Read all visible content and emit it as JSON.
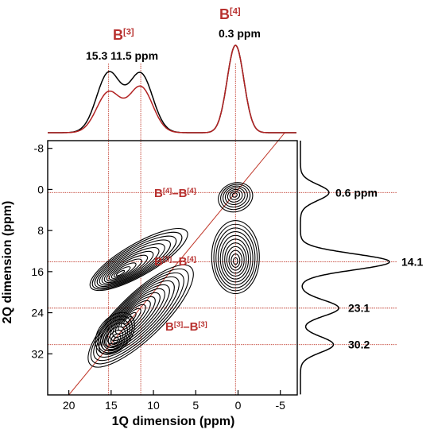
{
  "colors": {
    "spectrum_dark": "#000000",
    "spectrum_red": "#b22222",
    "guide_red": "#c0392b",
    "label_red": "#b8312f"
  },
  "top_labels": {
    "b3": {
      "base": "B",
      "sup": "[3]"
    },
    "b4": {
      "base": "B",
      "sup": "[4]"
    },
    "b3_peaks_text": "15.3   11.5 ppm",
    "b4_peak_text": "0.3 ppm"
  },
  "side_labels": {
    "l1": "0.6 ppm",
    "l2": "14.1",
    "l3": "23.1",
    "l4": "30.2"
  },
  "correlation_labels": [
    {
      "a": "B",
      "a_sup": "[4]",
      "dash": "–",
      "b": "B",
      "b_sup": "[4]"
    },
    {
      "a": "B",
      "a_sup": "[3]",
      "dash": "–",
      "b": "B",
      "b_sup": "[4]"
    },
    {
      "a": "B",
      "a_sup": "[3]",
      "dash": "–",
      "b": "B",
      "b_sup": "[3]"
    }
  ],
  "chart_data": {
    "type": "contour",
    "xlabel": "1Q dimension (ppm)",
    "ylabel": "2Q dimension (ppm)",
    "xlim": [
      22.5,
      -7
    ],
    "ylim": [
      -9.5,
      40
    ],
    "x_ticks": [
      "20",
      "15",
      "10",
      "5",
      "0",
      "-5"
    ],
    "x_tick_values": [
      20,
      15,
      10,
      5,
      0,
      -5
    ],
    "y_ticks": [
      "-8",
      "0",
      "8",
      "16",
      "24",
      "32"
    ],
    "y_tick_values": [
      -8,
      0,
      8,
      16,
      24,
      32
    ],
    "guide_x_ppm": [
      15.3,
      11.5,
      0.3
    ],
    "guide_y_ppm": [
      0.6,
      14.1,
      23.1,
      30.2
    ],
    "diagonal": [
      [
        20,
        40
      ],
      [
        -5.5,
        -11
      ]
    ],
    "contour_peaks": [
      {
        "name": "B4-B4 upper",
        "x": 0.3,
        "y": 0.6
      },
      {
        "name": "B4-B4 lower",
        "x": 0.3,
        "y": 14.1
      },
      {
        "name": "B3-B4",
        "x": 15.3,
        "y": 14.1
      },
      {
        "name": "B3-B3 a",
        "x": 11.5,
        "y": 23.1
      },
      {
        "name": "B3-B3 b",
        "x": 15.3,
        "y": 30.2
      }
    ],
    "top_projection": {
      "series": [
        {
          "color": "black",
          "peaks": [
            {
              "x": 15.3,
              "height": 0.68
            },
            {
              "x": 11.5,
              "height": 0.67
            },
            {
              "x": 0.3,
              "height": 1.0
            }
          ]
        },
        {
          "color": "red",
          "peaks": [
            {
              "x": 15.3,
              "height": 0.46
            },
            {
              "x": 11.5,
              "height": 0.52
            },
            {
              "x": 0.3,
              "height": 1.0
            }
          ]
        }
      ]
    },
    "side_projection": {
      "peaks": [
        {
          "y": 0.6,
          "height": 0.32
        },
        {
          "y": 14.1,
          "height": 1.0
        },
        {
          "y": 23.1,
          "height": 0.43
        },
        {
          "y": 30.2,
          "height": 0.37
        }
      ]
    }
  }
}
